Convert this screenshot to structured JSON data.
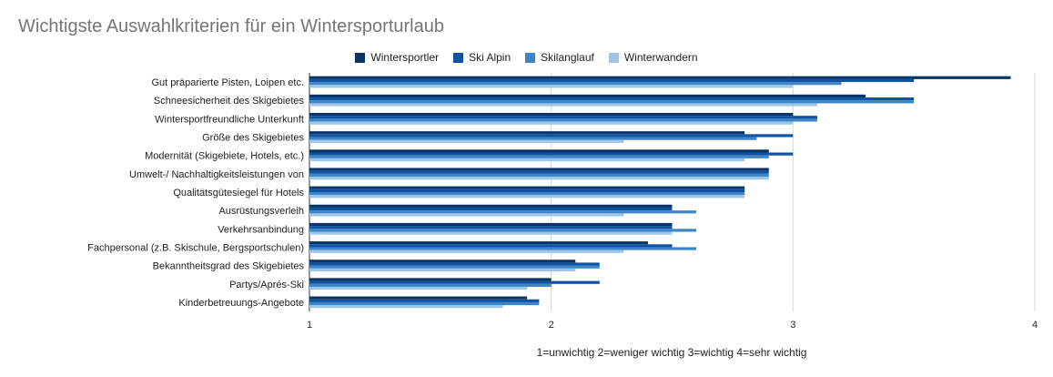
{
  "chart_data": {
    "type": "bar",
    "orientation": "horizontal",
    "title": "Wichtigste Auswahlkriterien für ein Wintersporturlaub",
    "xlabel": "1=unwichtig 2=weniger wichtig 3=wichtig 4=sehr wichtig",
    "ylabel": "",
    "xlim": [
      1,
      4
    ],
    "xticks": [
      "1",
      "2",
      "3",
      "4"
    ],
    "grid": true,
    "legend_position": "top",
    "categories": [
      "Gut präparierte Pisten, Loipen etc.",
      "Schneesicherheit des Skigebietes",
      "Wintersportfreundliche Unterkunft",
      "Größe des Skigebietes",
      "Modernität (Skigebiete, Hotels, etc.)",
      "Umwelt-/ Nachhaltigkeitsleistungen von",
      "Qualitätsgütesiegel für Hotels",
      "Ausrüstungsverleih",
      "Verkehrsanbindung",
      "Fachpersonal (z.B. Skischule, Bergsportschulen)",
      "Bekanntheitsgrad des Skigebietes",
      "Partys/Aprés-Ski",
      "Kinderbetreuungs-Angebote"
    ],
    "series": [
      {
        "name": "Wintersportler",
        "color": "#0b3466",
        "values": [
          3.9,
          3.3,
          3.0,
          2.8,
          2.9,
          2.9,
          2.8,
          2.5,
          2.5,
          2.4,
          2.1,
          2.0,
          1.9
        ]
      },
      {
        "name": "Ski Alpin",
        "color": "#0f52a0",
        "values": [
          3.5,
          3.5,
          3.1,
          3.0,
          3.0,
          2.9,
          2.8,
          2.5,
          2.5,
          2.5,
          2.2,
          2.2,
          1.95
        ]
      },
      {
        "name": "Skilanglauf",
        "color": "#3d85c6",
        "values": [
          3.2,
          3.5,
          3.1,
          2.85,
          2.9,
          2.9,
          2.8,
          2.6,
          2.6,
          2.6,
          2.2,
          2.0,
          1.95
        ]
      },
      {
        "name": "Winterwandern",
        "color": "#9fc5e8",
        "values": [
          3.0,
          3.1,
          3.0,
          2.3,
          2.8,
          2.9,
          2.8,
          2.3,
          2.5,
          2.3,
          2.1,
          1.9,
          1.8
        ]
      }
    ]
  }
}
